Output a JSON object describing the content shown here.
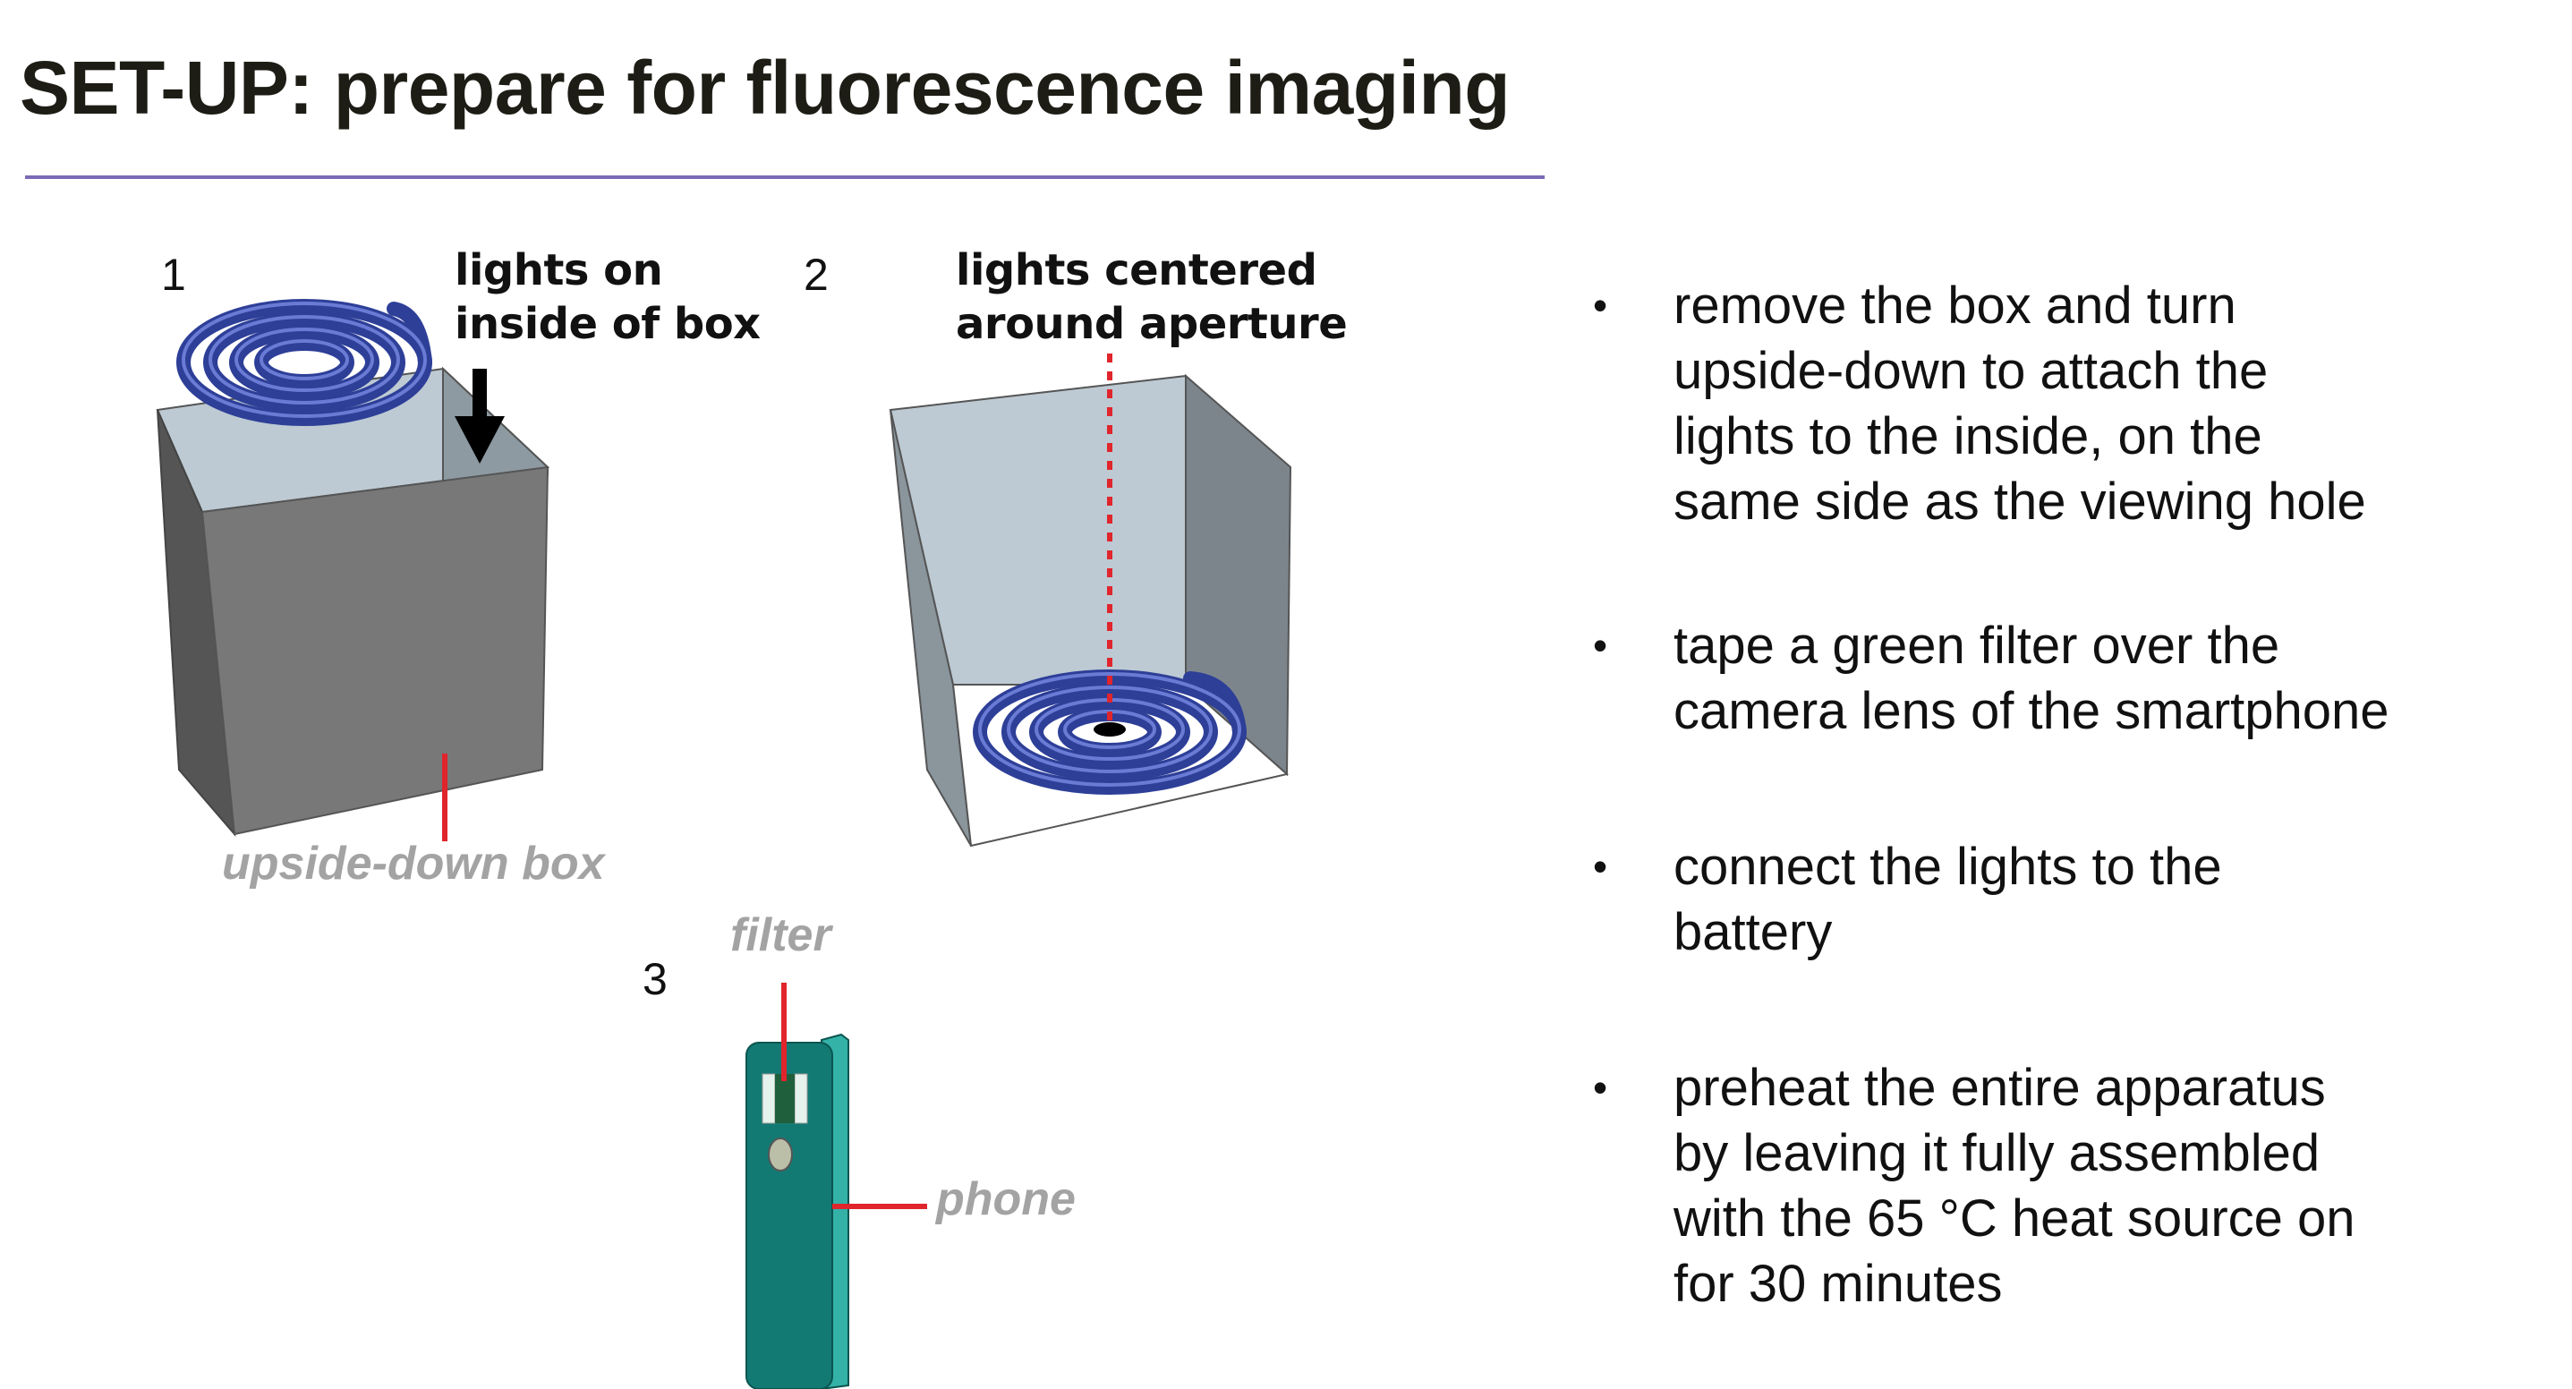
{
  "title": "SET-UP: prepare for fluorescence imaging",
  "figure1": {
    "step_number": "1",
    "callout_line1": "lights on",
    "callout_line2": "inside of box",
    "label": "upside-down box"
  },
  "figure2": {
    "step_number": "2",
    "callout_line1": "lights centered",
    "callout_line2": "around aperture"
  },
  "figure3": {
    "step_number": "3",
    "filter_label": "filter",
    "phone_label": "phone"
  },
  "bullets": [
    {
      "symbol": "•",
      "lines": [
        "remove the box and turn",
        "upside-down to attach the",
        "lights to the inside, on the",
        "same side as the viewing hole"
      ]
    },
    {
      "symbol": "•",
      "lines": [
        "tape a green filter over the",
        "camera lens of the smartphone"
      ]
    },
    {
      "symbol": "•",
      "lines": [
        "connect the lights to the",
        "battery"
      ]
    },
    {
      "symbol": "•",
      "lines": [
        "preheat the entire apparatus",
        "by leaving it fully assembled",
        "with the 65 °C heat source on",
        "for 30 minutes"
      ]
    }
  ],
  "colors": {
    "rule": "#7b6bb6",
    "box_front": "#787878",
    "box_inside": "#bdcad3",
    "coil": "#2e3f98",
    "pointer_red": "#e0252c",
    "phone": "#137a73",
    "label_gray": "#a3a3a3"
  }
}
